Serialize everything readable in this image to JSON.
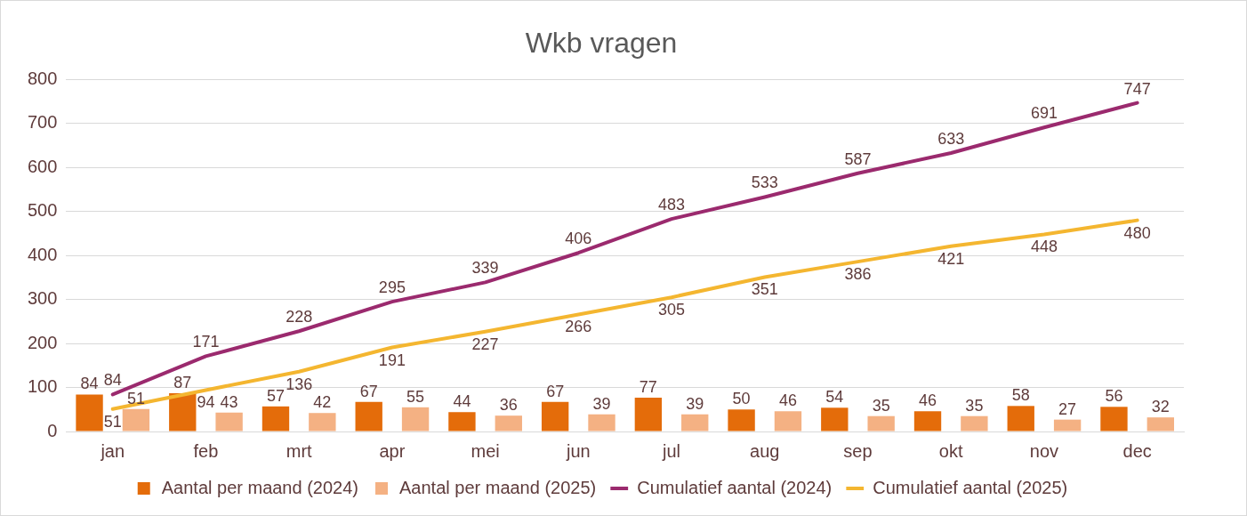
{
  "chart_data": {
    "type": "bar",
    "title": "Wkb vragen",
    "categories": [
      "jan",
      "feb",
      "mrt",
      "apr",
      "mei",
      "jun",
      "jul",
      "aug",
      "sep",
      "okt",
      "nov",
      "dec"
    ],
    "series": [
      {
        "name": "Aantal per maand (2024)",
        "color": "#e46c0a",
        "values": [
          84,
          87,
          57,
          67,
          44,
          67,
          77,
          50,
          54,
          46,
          58,
          56
        ]
      },
      {
        "name": "Aantal per maand (2025)",
        "color": "#f4b183",
        "values": [
          51,
          43,
          42,
          55,
          36,
          39,
          39,
          46,
          35,
          35,
          27,
          32
        ]
      },
      {
        "name": "Cumulatief aantal (2024)",
        "type": "line",
        "color": "#9b2a6e",
        "values": [
          84,
          171,
          228,
          295,
          339,
          406,
          483,
          533,
          587,
          633,
          691,
          747
        ]
      },
      {
        "name": "Cumulatief aantal (2025)",
        "type": "line",
        "color": "#f4b630",
        "values": [
          51,
          94,
          136,
          191,
          227,
          266,
          305,
          351,
          386,
          421,
          448,
          480
        ]
      }
    ],
    "ylim": [
      0,
      800
    ],
    "yticks": [
      0,
      100,
      200,
      300,
      400,
      500,
      600,
      700,
      800
    ],
    "grid": "y",
    "legend": "bottom",
    "marker": "none",
    "line_style": "solid",
    "data_labels": true
  }
}
